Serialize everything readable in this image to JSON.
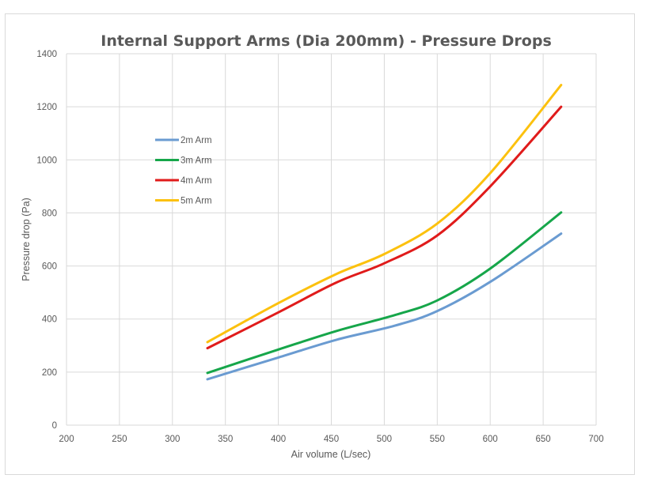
{
  "chart_data": {
    "type": "line",
    "title": "Internal Support Arms (Dia 200mm) - Pressure Drops",
    "xlabel": "Air volume (L/sec)",
    "ylabel": "Pressure drop (Pa)",
    "xlim": [
      200,
      700
    ],
    "ylim": [
      0,
      1400
    ],
    "xticks": [
      200,
      250,
      300,
      350,
      400,
      450,
      500,
      550,
      600,
      650,
      700
    ],
    "yticks": [
      0,
      200,
      400,
      600,
      800,
      1000,
      1200,
      1400
    ],
    "grid": true,
    "legend_position": "upper-left inside plot",
    "series": [
      {
        "name": "2m Arm",
        "color": "#6a9bd1",
        "x": [
          333,
          400,
          455,
          510,
          550,
          600,
          667
        ],
        "y": [
          173,
          255,
          322,
          375,
          430,
          540,
          722
        ]
      },
      {
        "name": "3m Arm",
        "color": "#16a64a",
        "x": [
          333,
          400,
          455,
          510,
          550,
          600,
          667
        ],
        "y": [
          197,
          285,
          355,
          415,
          470,
          590,
          802
        ]
      },
      {
        "name": "4m Arm",
        "color": "#e01b1b",
        "x": [
          333,
          400,
          455,
          500,
          550,
          600,
          667
        ],
        "y": [
          290,
          425,
          538,
          610,
          715,
          900,
          1200
        ]
      },
      {
        "name": "5m Arm",
        "color": "#fcc10e",
        "x": [
          333,
          400,
          455,
          500,
          550,
          600,
          667
        ],
        "y": [
          313,
          460,
          570,
          645,
          760,
          950,
          1282
        ]
      }
    ]
  }
}
